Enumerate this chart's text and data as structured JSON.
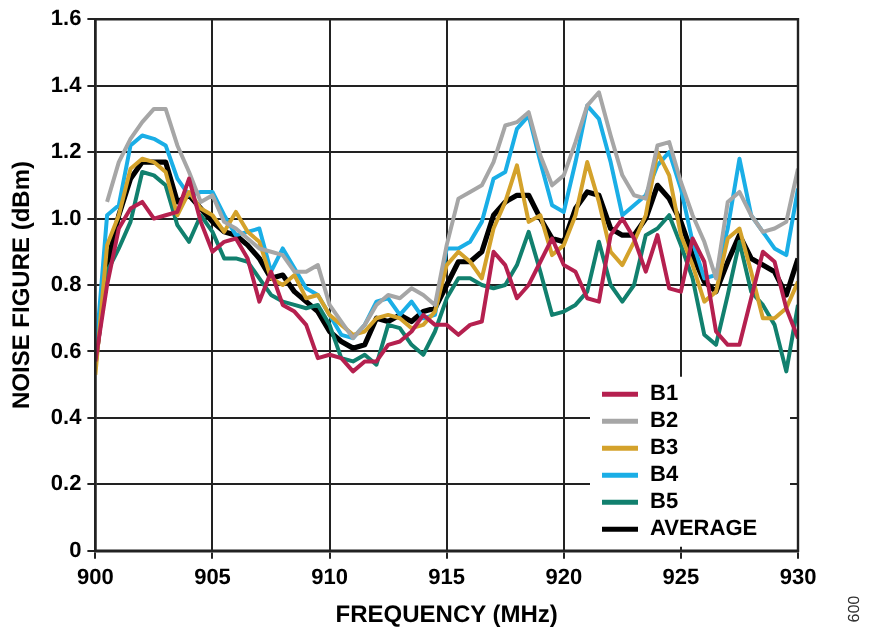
{
  "chart_data": {
    "type": "line",
    "xlabel": "FREQUENCY (MHz)",
    "ylabel": "NOISE FIGURE (dBm)",
    "x": [
      900,
      900.5,
      901,
      901.5,
      902,
      902.5,
      903,
      903.5,
      904,
      904.5,
      905,
      905.5,
      906,
      906.5,
      907,
      907.5,
      908,
      908.5,
      909,
      909.5,
      910,
      910.5,
      911,
      911.5,
      912,
      912.5,
      913,
      913.5,
      914,
      914.5,
      915,
      915.5,
      916,
      916.5,
      917,
      917.5,
      918,
      918.5,
      919,
      919.5,
      920,
      920.5,
      921,
      921.5,
      922,
      922.5,
      923,
      923.5,
      924,
      924.5,
      925,
      925.5,
      926,
      926.5,
      927,
      927.5,
      928,
      928.5,
      929,
      929.5,
      930
    ],
    "xlim": [
      900,
      930
    ],
    "xticks": [
      900,
      905,
      910,
      915,
      920,
      925,
      930
    ],
    "ylim": [
      0,
      1.6
    ],
    "yticks": [
      {
        "value": 0,
        "label": "0"
      },
      0.2,
      0.4,
      0.6,
      0.8,
      {
        "value": 1,
        "label": "1.0"
      },
      1.2,
      1.4,
      1.6
    ],
    "grid": true,
    "legend": "bottom right",
    "series": [
      {
        "name": "B1",
        "color": "#b5204f",
        "values": [
          0.57,
          0.8,
          0.97,
          1.03,
          1.05,
          1.0,
          1.01,
          1.02,
          1.12,
          0.99,
          0.9,
          0.93,
          0.94,
          0.88,
          0.75,
          0.84,
          0.74,
          0.72,
          0.68,
          0.58,
          0.59,
          0.58,
          0.54,
          0.57,
          0.57,
          0.62,
          0.63,
          0.66,
          0.71,
          0.68,
          0.68,
          0.65,
          0.68,
          0.69,
          0.9,
          0.86,
          0.76,
          0.8,
          0.87,
          0.94,
          0.86,
          0.84,
          0.76,
          0.75,
          0.95,
          1.0,
          0.94,
          0.84,
          0.95,
          0.79,
          0.78,
          0.94,
          0.87,
          0.66,
          0.62,
          0.62,
          0.76,
          0.9,
          0.87,
          0.73,
          0.64
        ]
      },
      {
        "name": "B2",
        "color": "#a6a6a6",
        "values": [
          null,
          1.05,
          1.17,
          1.24,
          1.29,
          1.33,
          1.33,
          1.22,
          1.14,
          1.05,
          1.07,
          0.99,
          0.97,
          0.94,
          0.91,
          0.9,
          0.89,
          0.84,
          0.84,
          0.86,
          0.74,
          0.69,
          0.64,
          0.68,
          0.74,
          0.77,
          0.76,
          0.79,
          0.77,
          0.74,
          0.92,
          1.06,
          1.08,
          1.1,
          1.17,
          1.28,
          1.29,
          1.32,
          1.19,
          1.1,
          1.13,
          1.23,
          1.34,
          1.38,
          1.25,
          1.13,
          1.07,
          1.06,
          1.22,
          1.23,
          1.11,
          1.01,
          0.93,
          0.82,
          1.05,
          1.08,
          1.01,
          0.96,
          0.97,
          0.99,
          1.15
        ]
      },
      {
        "name": "B3",
        "color": "#d4a22b",
        "values": [
          0.53,
          0.92,
          1.01,
          1.15,
          1.18,
          1.17,
          1.14,
          1.01,
          1.08,
          1.03,
          1.01,
          0.96,
          1.02,
          0.96,
          0.93,
          0.82,
          0.8,
          0.83,
          0.76,
          0.77,
          0.71,
          0.68,
          0.65,
          0.66,
          0.7,
          0.71,
          0.7,
          0.67,
          0.68,
          0.72,
          0.86,
          0.9,
          0.87,
          0.82,
          0.97,
          1.05,
          1.16,
          0.99,
          1.01,
          0.89,
          0.92,
          1.01,
          1.17,
          1.05,
          0.9,
          0.86,
          0.93,
          1.01,
          1.2,
          1.13,
          0.95,
          0.86,
          0.75,
          0.78,
          0.94,
          0.97,
          0.84,
          0.7,
          0.7,
          0.73,
          0.81
        ]
      },
      {
        "name": "B4",
        "color": "#1aaee6",
        "values": [
          0.58,
          1.01,
          1.04,
          1.22,
          1.25,
          1.24,
          1.22,
          1.12,
          1.07,
          1.08,
          1.08,
          1.01,
          0.95,
          0.96,
          0.97,
          0.84,
          0.91,
          0.85,
          0.79,
          0.77,
          0.71,
          0.65,
          0.64,
          0.68,
          0.75,
          0.76,
          0.71,
          0.75,
          0.7,
          0.71,
          0.91,
          0.91,
          0.93,
          0.99,
          1.12,
          1.14,
          1.27,
          1.31,
          1.17,
          1.04,
          1.02,
          1.17,
          1.34,
          1.3,
          1.17,
          1.01,
          1.04,
          1.07,
          1.16,
          1.2,
          1.09,
          0.93,
          0.82,
          0.83,
          0.97,
          1.18,
          1.01,
          0.96,
          0.91,
          0.89,
          1.09
        ]
      },
      {
        "name": "B5",
        "color": "#11806e",
        "values": [
          0.57,
          0.84,
          0.91,
          0.99,
          1.14,
          1.13,
          1.1,
          0.98,
          0.93,
          1.01,
          0.96,
          0.88,
          0.88,
          0.87,
          0.82,
          0.77,
          0.75,
          0.74,
          0.73,
          0.74,
          0.68,
          0.58,
          0.57,
          0.59,
          0.56,
          0.68,
          0.67,
          0.62,
          0.59,
          0.66,
          0.76,
          0.82,
          0.82,
          0.8,
          0.79,
          0.8,
          0.86,
          0.96,
          0.84,
          0.71,
          0.72,
          0.74,
          0.78,
          0.93,
          0.8,
          0.75,
          0.8,
          0.95,
          0.97,
          1.01,
          0.92,
          0.82,
          0.65,
          0.62,
          0.77,
          0.93,
          0.78,
          0.74,
          0.68,
          0.54,
          0.74
        ]
      },
      {
        "name": "AVERAGE",
        "color": "#000000",
        "values": [
          0.57,
          0.86,
          1.01,
          1.12,
          1.17,
          1.17,
          1.17,
          1.05,
          1.07,
          1.03,
          0.99,
          0.96,
          0.95,
          0.92,
          0.88,
          0.82,
          0.83,
          0.78,
          0.75,
          0.72,
          0.66,
          0.63,
          0.61,
          0.62,
          0.7,
          0.69,
          0.71,
          0.69,
          0.72,
          0.73,
          0.8,
          0.87,
          0.87,
          0.9,
          1.01,
          1.05,
          1.07,
          1.07,
          1.0,
          0.94,
          0.93,
          1.03,
          1.08,
          1.07,
          0.97,
          0.95,
          0.95,
          1.0,
          1.1,
          1.06,
          0.99,
          0.89,
          0.81,
          0.78,
          0.87,
          0.95,
          0.88,
          0.86,
          0.84,
          0.77,
          0.88
        ]
      }
    ],
    "annotations": [
      "009"
    ]
  }
}
